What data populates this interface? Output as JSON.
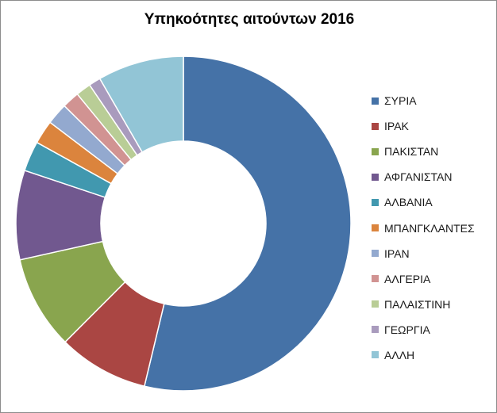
{
  "chart_data": {
    "type": "pie",
    "variant": "donut",
    "title": "Υπηκοότητες αιτούντων 2016",
    "legend_position": "right",
    "categories": [
      "ΣΥΡΙΑ",
      "ΙΡΑΚ",
      "ΠΑΚΙΣΤΑΝ",
      "ΑΦΓΑΝΙΣΤΑΝ",
      "ΑΛΒΑΝΙΑ",
      "ΜΠΑΝΓΚΛΑΝΤΕΣ",
      "ΙΡΑΝ",
      "ΑΛΓΕΡΙΑ",
      "ΠΑΛΑΙΣΤΙΝΗ",
      "ΓΕΩΡΓΙΑ",
      "ΑΛΛΗ"
    ],
    "values": [
      51.7,
      8.4,
      8.7,
      8.3,
      2.8,
      2.2,
      2.0,
      1.6,
      1.4,
      1.1,
      8.0
    ],
    "colors": [
      "#4572A7",
      "#AA4643",
      "#89A54E",
      "#71588F",
      "#4198AF",
      "#DB843D",
      "#93A9CF",
      "#D19392",
      "#B9CD96",
      "#A99BBD",
      "#92C5D6"
    ]
  }
}
